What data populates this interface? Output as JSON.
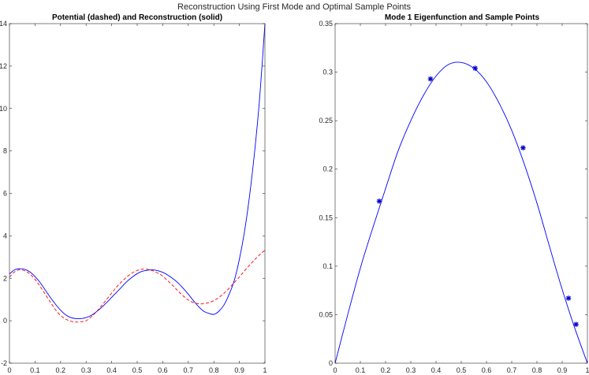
{
  "figure_title": "Reconstruction Using First Mode and Optimal Sample Points",
  "colors": {
    "reconstruction": "#0000ff",
    "potential": "#ff0000",
    "eigenfunction": "#0000ff",
    "samples": "#0000cc"
  },
  "chart_data": [
    {
      "type": "line",
      "title": "Potential (dashed) and Reconstruction (solid)",
      "xlabel": "",
      "ylabel": "",
      "xlim": [
        0,
        1
      ],
      "ylim": [
        -2,
        14
      ],
      "xticks": [
        "0",
        "0.1",
        "0.2",
        "0.3",
        "0.4",
        "0.5",
        "0.6",
        "0.7",
        "0.8",
        "0.9",
        "1"
      ],
      "yticks": [
        "-2",
        "0",
        "2",
        "4",
        "6",
        "8",
        "10",
        "12",
        "14"
      ],
      "grid": false,
      "series": [
        {
          "style": "solid",
          "color": "#0000ff",
          "x": [
            0,
            0.02,
            0.04,
            0.06,
            0.08,
            0.1,
            0.12,
            0.14,
            0.16,
            0.18,
            0.2,
            0.22,
            0.24,
            0.26,
            0.28,
            0.3,
            0.32,
            0.34,
            0.36,
            0.38,
            0.4,
            0.42,
            0.44,
            0.46,
            0.48,
            0.5,
            0.52,
            0.54,
            0.56,
            0.58,
            0.6,
            0.62,
            0.64,
            0.66,
            0.68,
            0.7,
            0.72,
            0.74,
            0.76,
            0.78,
            0.8,
            0.82,
            0.84,
            0.86,
            0.88,
            0.9,
            0.92,
            0.94,
            0.96,
            0.98,
            1.0
          ],
          "y": [
            2.2,
            2.4,
            2.45,
            2.42,
            2.3,
            2.08,
            1.8,
            1.45,
            1.1,
            0.78,
            0.5,
            0.28,
            0.15,
            0.1,
            0.1,
            0.15,
            0.25,
            0.42,
            0.62,
            0.85,
            1.1,
            1.35,
            1.6,
            1.85,
            2.05,
            2.22,
            2.33,
            2.38,
            2.4,
            2.36,
            2.28,
            2.15,
            1.98,
            1.78,
            1.53,
            1.25,
            0.95,
            0.67,
            0.45,
            0.35,
            0.3,
            0.45,
            0.75,
            1.25,
            1.9,
            2.9,
            4.2,
            5.9,
            8.0,
            10.6,
            14.0
          ]
        },
        {
          "style": "dashed",
          "color": "#ff0000",
          "x": [
            0,
            0.02,
            0.04,
            0.06,
            0.08,
            0.1,
            0.12,
            0.14,
            0.16,
            0.18,
            0.2,
            0.22,
            0.24,
            0.26,
            0.28,
            0.3,
            0.32,
            0.34,
            0.36,
            0.38,
            0.4,
            0.42,
            0.44,
            0.46,
            0.48,
            0.5,
            0.52,
            0.54,
            0.56,
            0.58,
            0.6,
            0.62,
            0.64,
            0.66,
            0.68,
            0.7,
            0.72,
            0.74,
            0.76,
            0.78,
            0.8,
            0.82,
            0.84,
            0.86,
            0.88,
            0.9,
            0.92,
            0.94,
            0.96,
            0.98,
            1.0
          ],
          "y": [
            2.05,
            2.3,
            2.4,
            2.35,
            2.2,
            1.95,
            1.62,
            1.25,
            0.88,
            0.52,
            0.25,
            0.08,
            -0.02,
            -0.06,
            -0.05,
            0.0,
            0.18,
            0.42,
            0.7,
            1.0,
            1.3,
            1.6,
            1.85,
            2.07,
            2.25,
            2.37,
            2.43,
            2.42,
            2.36,
            2.25,
            2.1,
            1.88,
            1.65,
            1.4,
            1.17,
            0.98,
            0.86,
            0.8,
            0.8,
            0.85,
            0.95,
            1.1,
            1.3,
            1.53,
            1.8,
            2.06,
            2.35,
            2.62,
            2.88,
            3.12,
            3.32
          ]
        }
      ]
    },
    {
      "type": "line",
      "title": "Mode 1 Eigenfunction and Sample Points",
      "xlabel": "",
      "ylabel": "",
      "xlim": [
        0,
        1
      ],
      "ylim": [
        0,
        0.35
      ],
      "xticks": [
        "0",
        "0.1",
        "0.2",
        "0.3",
        "0.4",
        "0.5",
        "0.6",
        "0.7",
        "0.8",
        "0.9",
        "1"
      ],
      "yticks": [
        "0",
        "0.05",
        "0.1",
        "0.15",
        "0.2",
        "0.25",
        "0.3",
        "0.35"
      ],
      "grid": false,
      "series": [
        {
          "style": "solid",
          "color": "#0000ff",
          "x": [
            0,
            0.05,
            0.1,
            0.15,
            0.2,
            0.25,
            0.3,
            0.35,
            0.4,
            0.45,
            0.5,
            0.55,
            0.6,
            0.65,
            0.7,
            0.75,
            0.8,
            0.85,
            0.9,
            0.95,
            1.0
          ],
          "y": [
            0,
            0.05,
            0.098,
            0.14,
            0.18,
            0.219,
            0.25,
            0.276,
            0.296,
            0.308,
            0.31,
            0.304,
            0.29,
            0.268,
            0.24,
            0.205,
            0.165,
            0.12,
            0.076,
            0.036,
            0
          ]
        },
        {
          "style": "markers",
          "marker": "*",
          "color": "#0000cc",
          "x": [
            0.175,
            0.378,
            0.555,
            0.745,
            0.925,
            0.955
          ],
          "y": [
            0.167,
            0.293,
            0.304,
            0.222,
            0.067,
            0.04
          ]
        }
      ]
    }
  ]
}
